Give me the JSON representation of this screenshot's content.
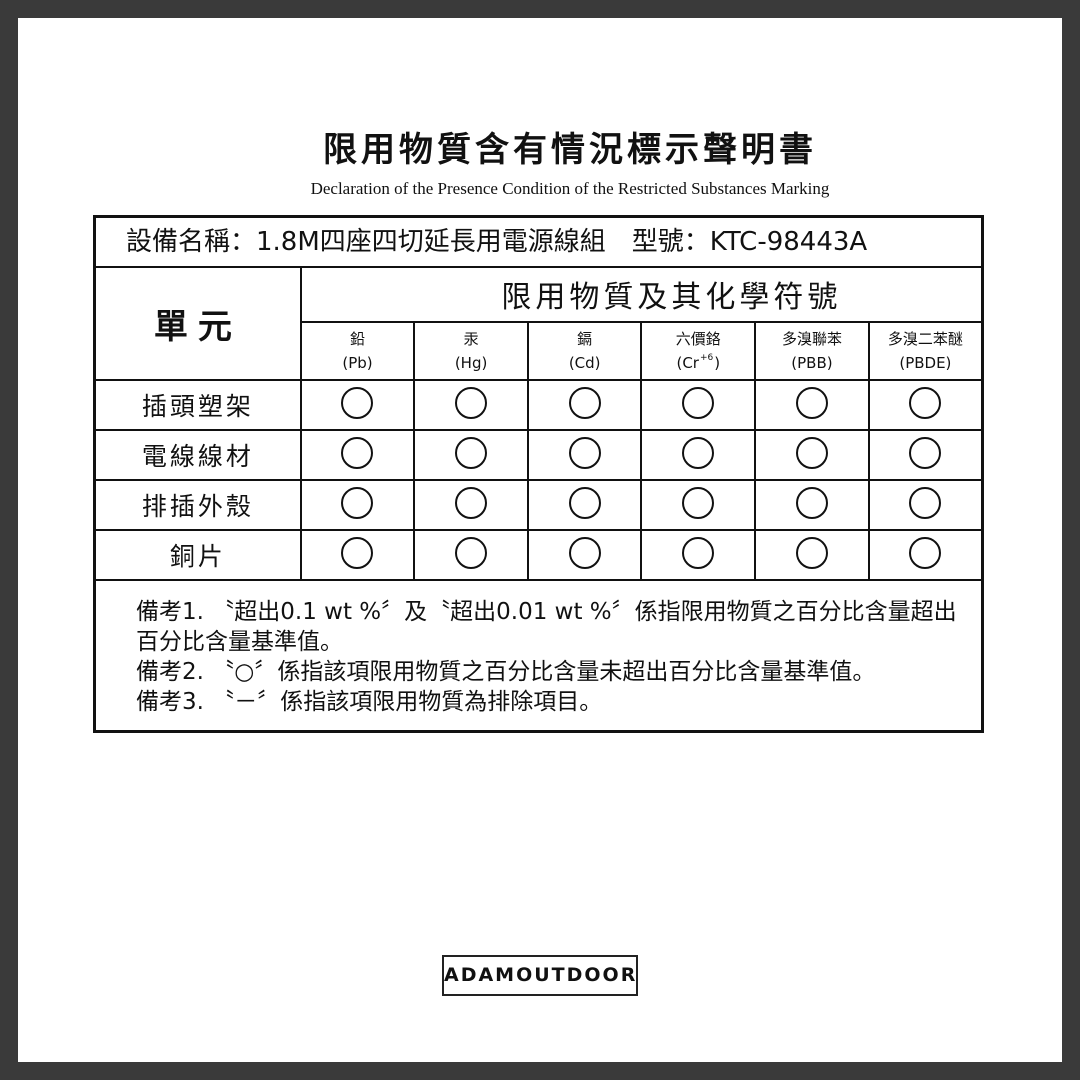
{
  "title": "限用物質含有情況標示聲明書",
  "subtitle": "Declaration of the Presence Condition of the Restricted Substances Marking",
  "device_line": "設備名稱：1.8M四座四切延長用電源線組　型號：KTC-98443A",
  "unit_label": "單元",
  "substances_label": "限用物質及其化學符號",
  "substances": [
    {
      "name": "鉛",
      "symbol": "(Pb)"
    },
    {
      "name": "汞",
      "symbol": "(Hg)"
    },
    {
      "name": "鎘",
      "symbol": "(Cd)"
    },
    {
      "name": "六價鉻",
      "symbol": "(Cr",
      "sup": "+6",
      "close": ")"
    },
    {
      "name": "多溴聯苯",
      "symbol": "(PBB)"
    },
    {
      "name": "多溴二苯醚",
      "symbol": "(PBDE)"
    }
  ],
  "rows": [
    {
      "unit": "插頭塑架",
      "marks": [
        "○",
        "○",
        "○",
        "○",
        "○",
        "○"
      ]
    },
    {
      "unit": "電線線材",
      "marks": [
        "○",
        "○",
        "○",
        "○",
        "○",
        "○"
      ]
    },
    {
      "unit": "排插外殼",
      "marks": [
        "○",
        "○",
        "○",
        "○",
        "○",
        "○"
      ]
    },
    {
      "unit": "銅片",
      "marks": [
        "○",
        "○",
        "○",
        "○",
        "○",
        "○"
      ]
    }
  ],
  "notes": [
    "備考1. 〝超出0.1 wt %〞及〝超出0.01 wt %〞係指限用物質之百分比含量超出百分比含量基準值。",
    "備考2. 〝○〞係指該項限用物質之百分比含量未超出百分比含量基準值。",
    "備考3. 〝－〞係指該項限用物質為排除項目。"
  ],
  "brand": "ADAMOUTDOOR"
}
